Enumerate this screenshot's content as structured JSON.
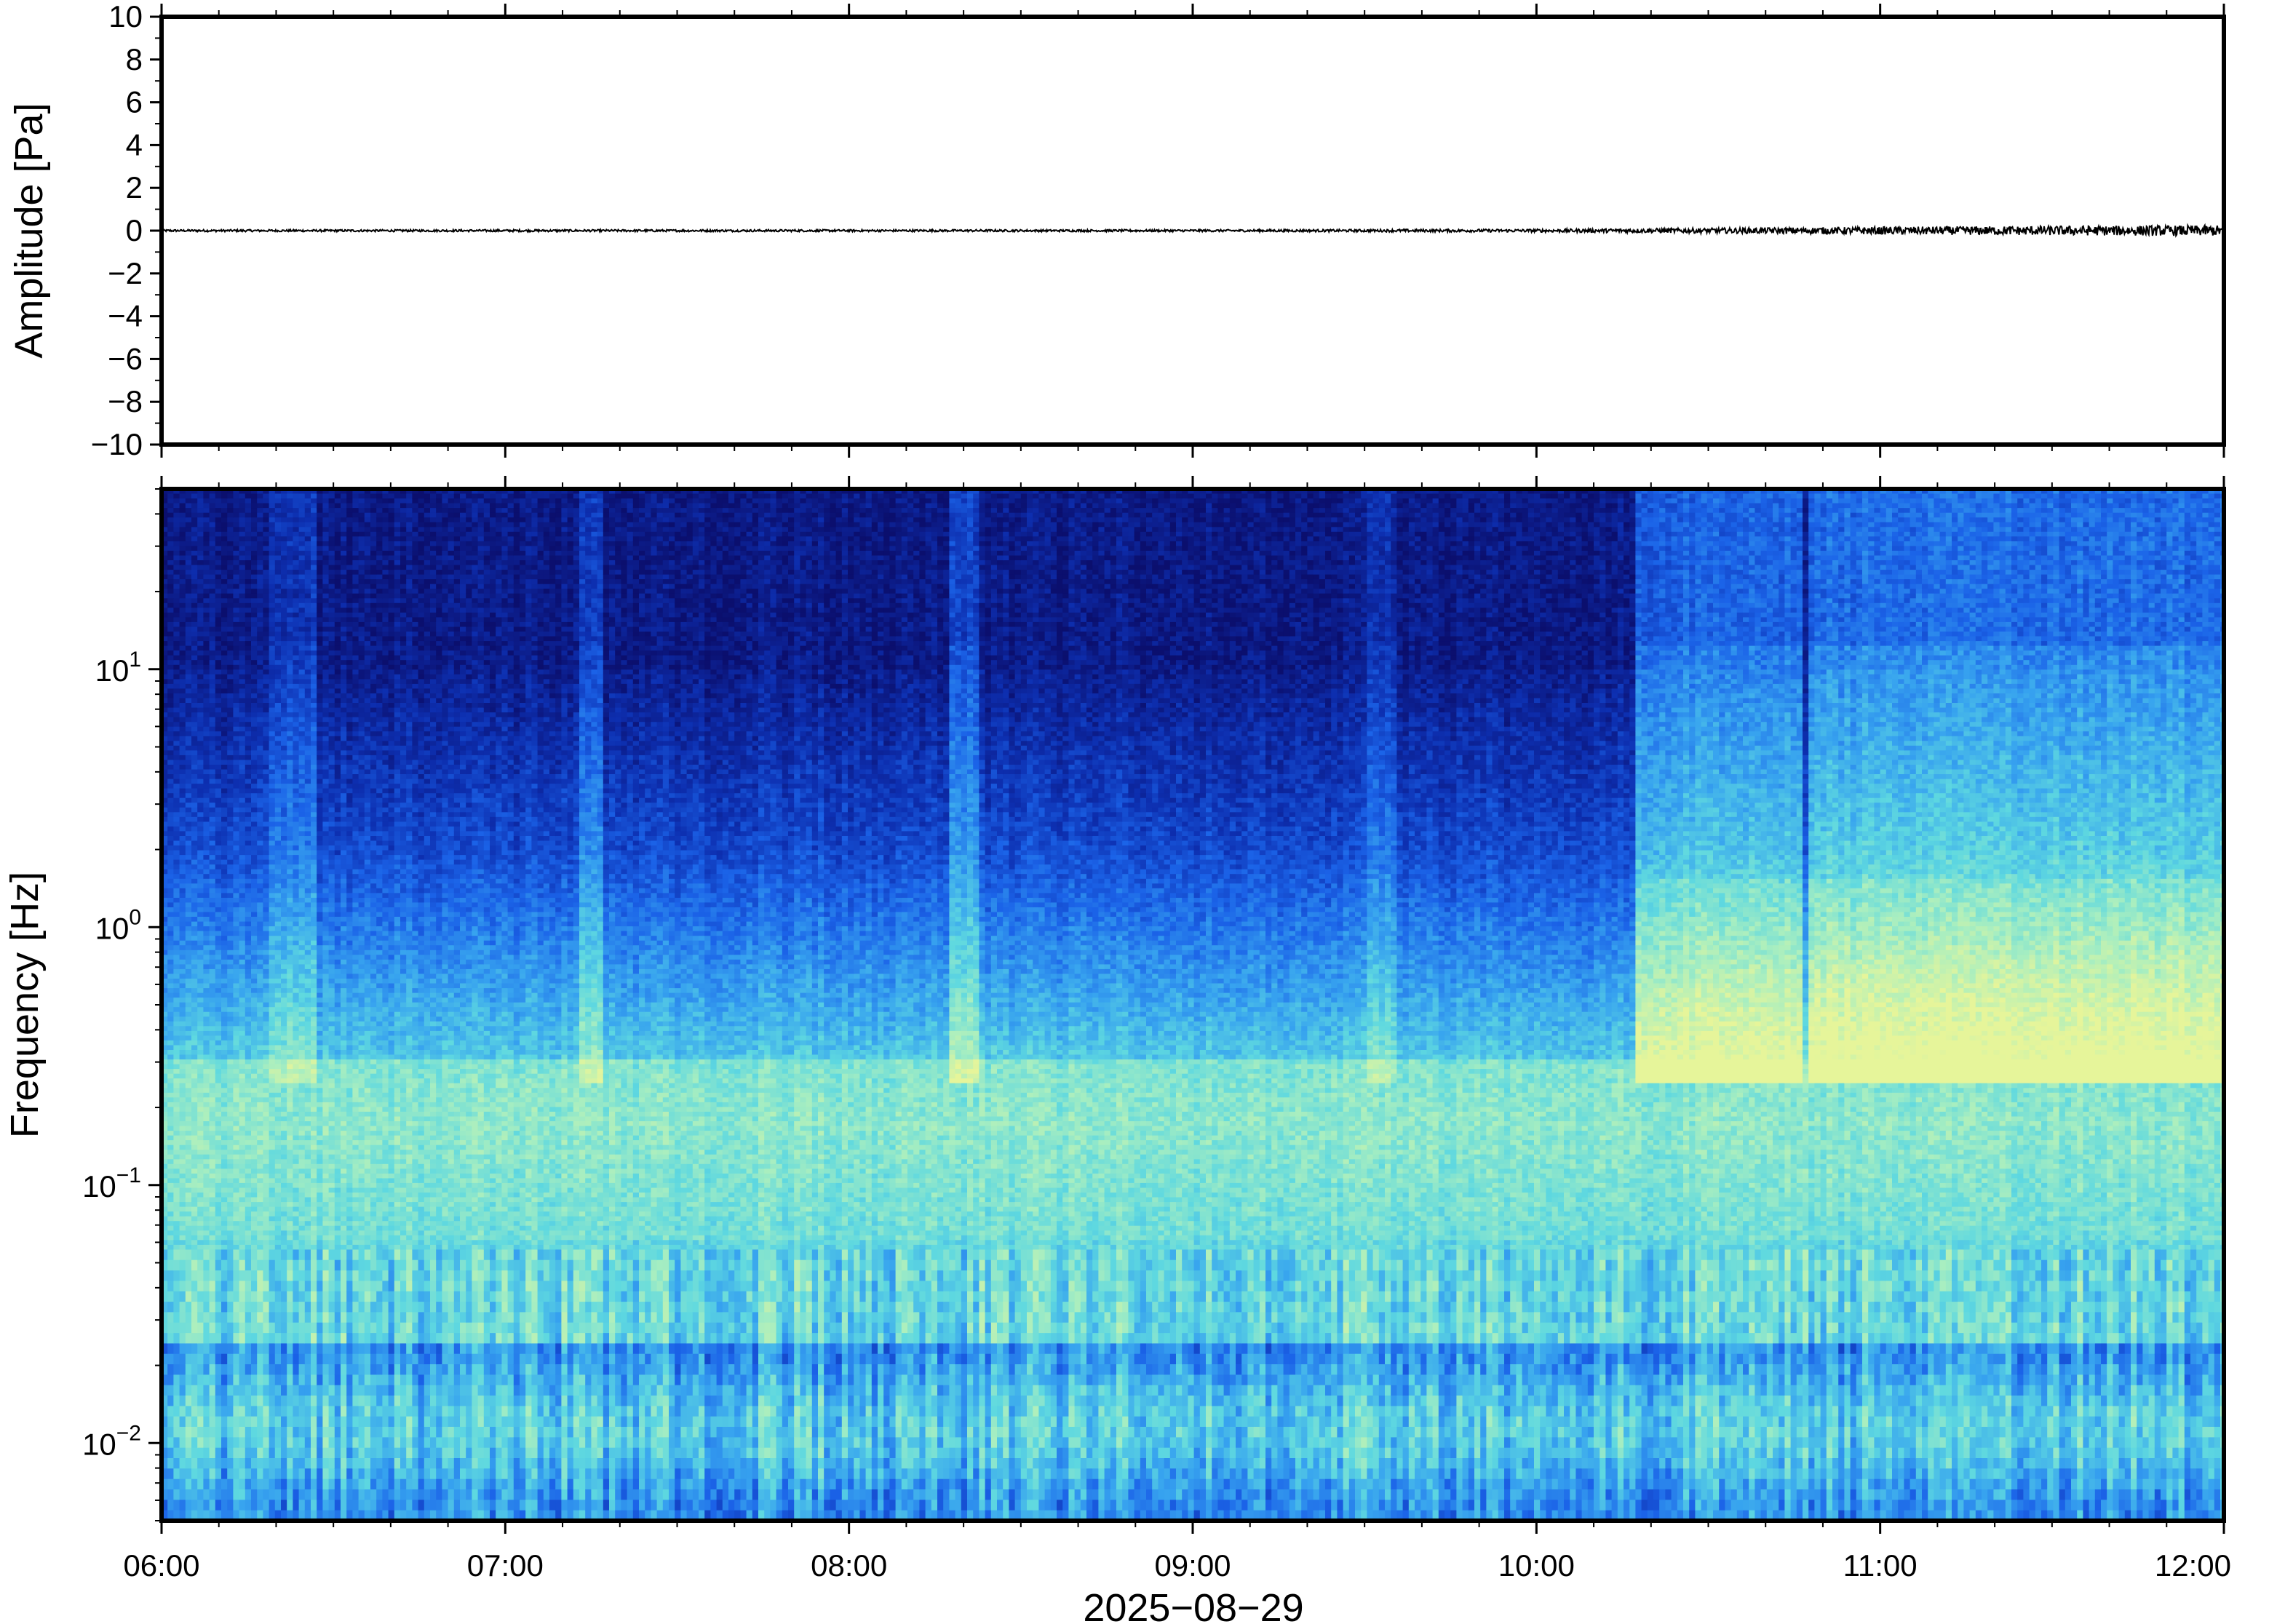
{
  "chart_data": [
    {
      "type": "line",
      "panel": "waveform",
      "ylabel": "Amplitude [Pa]",
      "ylim": [
        -10,
        10
      ],
      "yticks": [
        {
          "value": 10,
          "label": "10"
        },
        {
          "value": 8,
          "label": "8"
        },
        {
          "value": 6,
          "label": "6"
        },
        {
          "value": 4,
          "label": "4"
        },
        {
          "value": 2,
          "label": "2"
        },
        {
          "value": 0,
          "label": "0"
        },
        {
          "value": -2,
          "label": "−2"
        },
        {
          "value": -4,
          "label": "−4"
        },
        {
          "value": -6,
          "label": "−6"
        },
        {
          "value": -8,
          "label": "−8"
        },
        {
          "value": -10,
          "label": "−10"
        }
      ],
      "xlim": [
        "06:00",
        "12:00"
      ],
      "series": [
        {
          "values": "trace of amplitude near 0 Pa, noise amplitude growing after ~10:20",
          "envelope": [
            {
              "time": "06:00",
              "amp": 0.05
            },
            {
              "time": "07:00",
              "amp": 0.05
            },
            {
              "time": "08:00",
              "amp": 0.05
            },
            {
              "time": "09:00",
              "amp": 0.05
            },
            {
              "time": "10:00",
              "amp": 0.07
            },
            {
              "time": "10:30",
              "amp": 0.12
            },
            {
              "time": "11:00",
              "amp": 0.18
            },
            {
              "time": "11:30",
              "amp": 0.22
            },
            {
              "time": "12:00",
              "amp": 0.25
            }
          ],
          "color": "#000000"
        }
      ]
    },
    {
      "type": "heatmap",
      "panel": "spectrogram",
      "ylabel": "Frequency [Hz]",
      "xlabel": "2025−08−29",
      "yscale": "log",
      "ylim": [
        0.005,
        50
      ],
      "yticks": [
        {
          "value": 10,
          "base": "10",
          "exp": "1"
        },
        {
          "value": 1,
          "base": "10",
          "exp": "0"
        },
        {
          "value": 0.1,
          "base": "10",
          "exp": "−1"
        },
        {
          "value": 0.01,
          "base": "10",
          "exp": "−2"
        }
      ],
      "xticks": [
        "06:00",
        "07:00",
        "08:00",
        "09:00",
        "10:00",
        "11:00",
        "12:00"
      ],
      "colormap": [
        "#0b0f6e",
        "#0d2fb0",
        "#1b63e8",
        "#37a3ef",
        "#5ed8e0",
        "#a8eec0",
        "#e6f59a"
      ],
      "broadband_events": [
        {
          "start": "06:18",
          "end": "06:27",
          "strength": 0.35
        },
        {
          "start": "07:12",
          "end": "07:17",
          "strength": 0.4
        },
        {
          "start": "08:17",
          "end": "08:22",
          "strength": 0.55
        },
        {
          "start": "09:30",
          "end": "09:35",
          "strength": 0.3
        },
        {
          "start": "10:17",
          "end": "10:46",
          "strength": 0.8
        },
        {
          "start": "10:47",
          "end": "12:00",
          "strength": 0.9
        }
      ]
    }
  ]
}
